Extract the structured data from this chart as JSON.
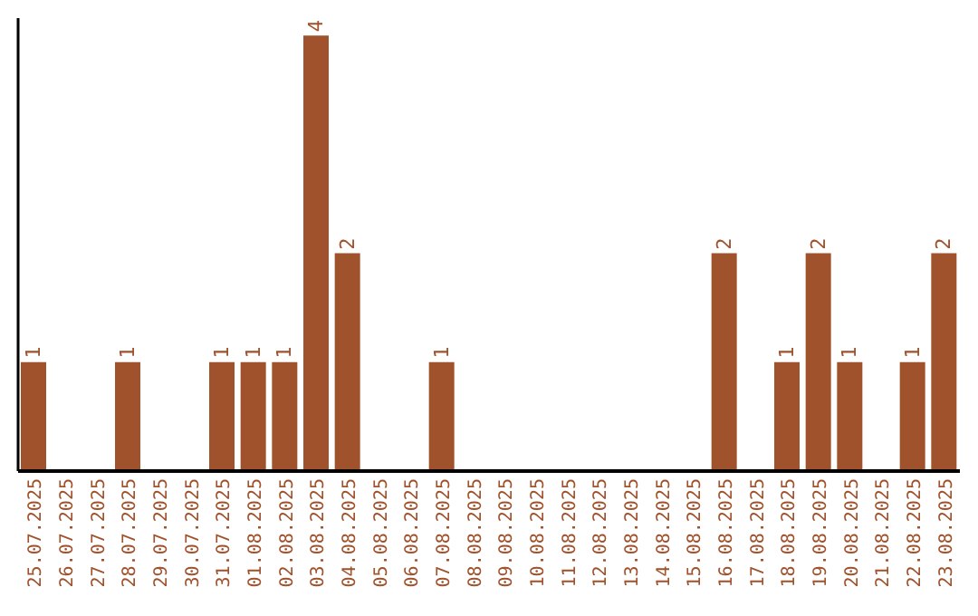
{
  "chart_data": {
    "type": "bar",
    "categories": [
      "25.07.2025",
      "26.07.2025",
      "27.07.2025",
      "28.07.2025",
      "29.07.2025",
      "30.07.2025",
      "31.07.2025",
      "01.08.2025",
      "02.08.2025",
      "03.08.2025",
      "04.08.2025",
      "05.08.2025",
      "06.08.2025",
      "07.08.2025",
      "08.08.2025",
      "09.08.2025",
      "10.08.2025",
      "11.08.2025",
      "12.08.2025",
      "13.08.2025",
      "14.08.2025",
      "15.08.2025",
      "16.08.2025",
      "17.08.2025",
      "18.08.2025",
      "19.08.2025",
      "20.08.2025",
      "21.08.2025",
      "22.08.2025",
      "23.08.2025"
    ],
    "values": [
      1,
      0,
      0,
      1,
      0,
      0,
      1,
      1,
      1,
      4,
      2,
      0,
      0,
      1,
      0,
      0,
      0,
      0,
      0,
      0,
      0,
      0,
      2,
      0,
      1,
      2,
      1,
      0,
      1,
      2
    ],
    "value_labels": [
      "1",
      null,
      null,
      "1",
      null,
      null,
      "1",
      "1",
      "1",
      "4",
      "2",
      null,
      null,
      "1",
      null,
      null,
      null,
      null,
      null,
      null,
      null,
      null,
      "2",
      null,
      "1",
      "2",
      "1",
      null,
      "1",
      "2"
    ],
    "color": "#a0522d",
    "ylim": [
      0,
      4.16
    ],
    "tick_labels": "x",
    "grid": false,
    "legend": false
  }
}
